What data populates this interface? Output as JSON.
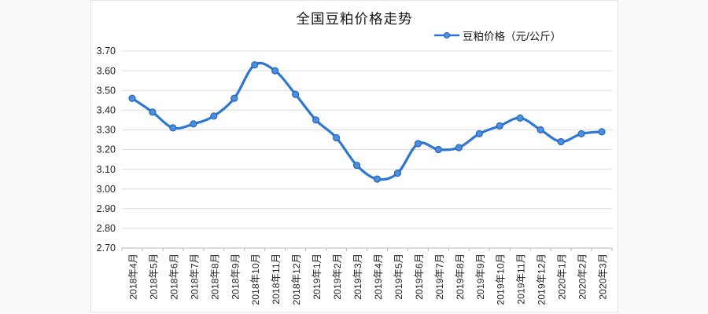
{
  "page": {
    "background_color": "#fafafa",
    "card_background": "#ffffff",
    "card_border_color": "#e4e4e4"
  },
  "chart_data": {
    "type": "line",
    "title": "全国豆粕价格走势",
    "legend": {
      "label": "豆粕价格（元/公斤）",
      "position": "top-right"
    },
    "categories": [
      "2018年4月",
      "2018年5月",
      "2018年6月",
      "2018年7月",
      "2018年8月",
      "2018年9月",
      "2018年10月",
      "2018年11月",
      "2018年12月",
      "2019年1月",
      "2019年2月",
      "2019年3月",
      "2019年4月",
      "2019年5月",
      "2019年6月",
      "2019年7月",
      "2019年8月",
      "2019年9月",
      "2019年10月",
      "2019年11月",
      "2019年12月",
      "2020年1月",
      "2020年2月",
      "2020年3月"
    ],
    "series": [
      {
        "name": "豆粕价格（元/公斤）",
        "values": [
          3.46,
          3.39,
          3.31,
          3.33,
          3.37,
          3.46,
          3.63,
          3.6,
          3.48,
          3.35,
          3.26,
          3.12,
          3.05,
          3.08,
          3.23,
          3.2,
          3.21,
          3.28,
          3.32,
          3.36,
          3.3,
          3.24,
          3.28,
          3.29
        ]
      }
    ],
    "xlabel": "",
    "ylabel": "",
    "ylim": [
      2.7,
      3.7
    ],
    "y_ticks": [
      "3.70",
      "3.60",
      "3.50",
      "3.40",
      "3.30",
      "3.20",
      "3.10",
      "3.00",
      "2.90",
      "2.80",
      "2.70"
    ],
    "grid": true,
    "smooth": true,
    "line_color": "#2e76d4",
    "marker_fill": "#4d8fdf",
    "marker_stroke": "#2565bd",
    "grid_color": "#dcdcdc",
    "axis_color": "#b9b9b9",
    "text_color": "#222222"
  }
}
